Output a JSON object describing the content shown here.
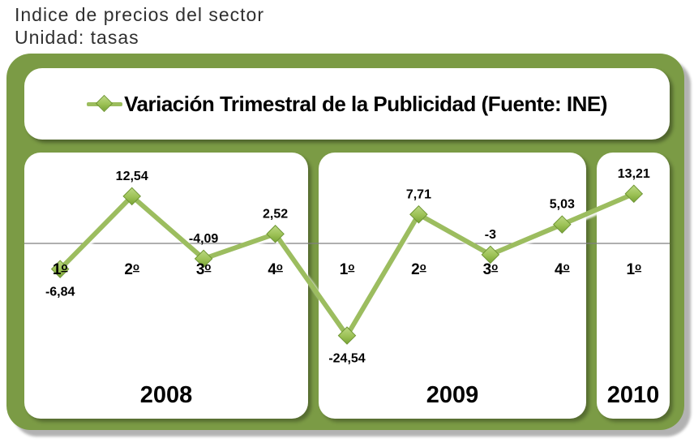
{
  "page": {
    "title_line1": "Indice de precios del sector",
    "title_line2": "Unidad: tasas"
  },
  "legend": {
    "label": "Variación Trimestral de la Publicidad (Fuente: INE)"
  },
  "colors": {
    "frame_green": "#7b9b45",
    "line_green": "#9cbd5e",
    "marker_light": "#bcd883",
    "marker_mid": "#9cc155",
    "marker_dark": "#78a336",
    "marker_border": "#6e9631",
    "zero_line": "#7f7f7f",
    "panel_bg": "#ffffff",
    "text": "#000000"
  },
  "chart_data": {
    "type": "line",
    "title": "Variación Trimestral de la Publicidad (Fuente: INE)",
    "unit": "tasas",
    "legend_position": "top",
    "zero_line": true,
    "grid": false,
    "ylim": [
      -30,
      26
    ],
    "groups": [
      {
        "year": "2008",
        "quarters": [
          "1º",
          "2º",
          "3º",
          "4º"
        ],
        "values": [
          -6.84,
          12.54,
          -4.09,
          2.52
        ]
      },
      {
        "year": "2009",
        "quarters": [
          "1º",
          "2º",
          "3º",
          "4º"
        ],
        "values": [
          -24.54,
          7.71,
          -3,
          5.03
        ]
      },
      {
        "year": "2010",
        "quarters": [
          "1º"
        ],
        "values": [
          13.21
        ]
      }
    ],
    "value_labels": [
      "-6,84",
      "12,54",
      "-4,09",
      "2,52",
      "-24,54",
      "7,71",
      "-3",
      "5,03",
      "13,21"
    ],
    "label_positions": [
      "below",
      "above",
      "above",
      "above",
      "below",
      "above",
      "above",
      "above",
      "above"
    ]
  }
}
